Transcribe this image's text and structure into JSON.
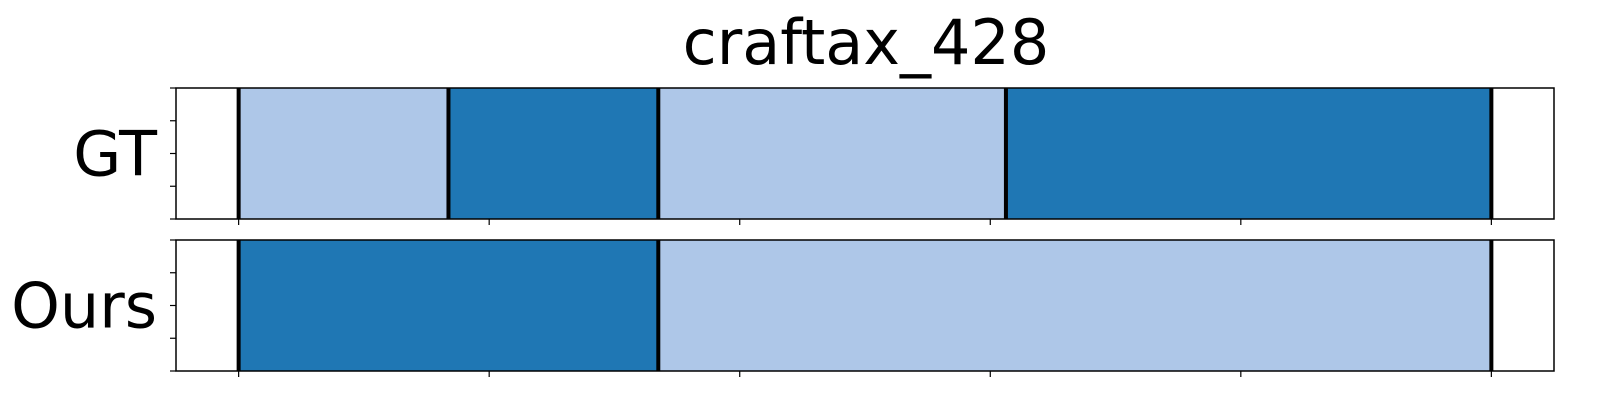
{
  "chart_data": {
    "type": "segmentation",
    "title": "craftax_428",
    "xlim": [
      -1,
      21
    ],
    "rows": [
      {
        "label": "GT",
        "segments": [
          {
            "start": 0,
            "end": 3.35,
            "color": "#aec7e8"
          },
          {
            "start": 3.35,
            "end": 6.7,
            "color": "#1f77b4"
          },
          {
            "start": 6.7,
            "end": 12.25,
            "color": "#aec7e8"
          },
          {
            "start": 12.25,
            "end": 20,
            "color": "#1f77b4"
          }
        ],
        "boundaries": [
          0,
          3.35,
          6.7,
          12.25,
          20
        ]
      },
      {
        "label": "Ours",
        "segments": [
          {
            "start": 0,
            "end": 6.7,
            "color": "#1f77b4"
          },
          {
            "start": 6.7,
            "end": 20,
            "color": "#aec7e8"
          }
        ],
        "boundaries": [
          0,
          6.7,
          20
        ]
      }
    ],
    "x_ticks": [
      0,
      4,
      8,
      12,
      16,
      20
    ],
    "tick_labels_visible": false,
    "grid": false,
    "colors": {
      "light": "#aec7e8",
      "dark": "#1f77b4",
      "boundary": "#000000"
    }
  }
}
